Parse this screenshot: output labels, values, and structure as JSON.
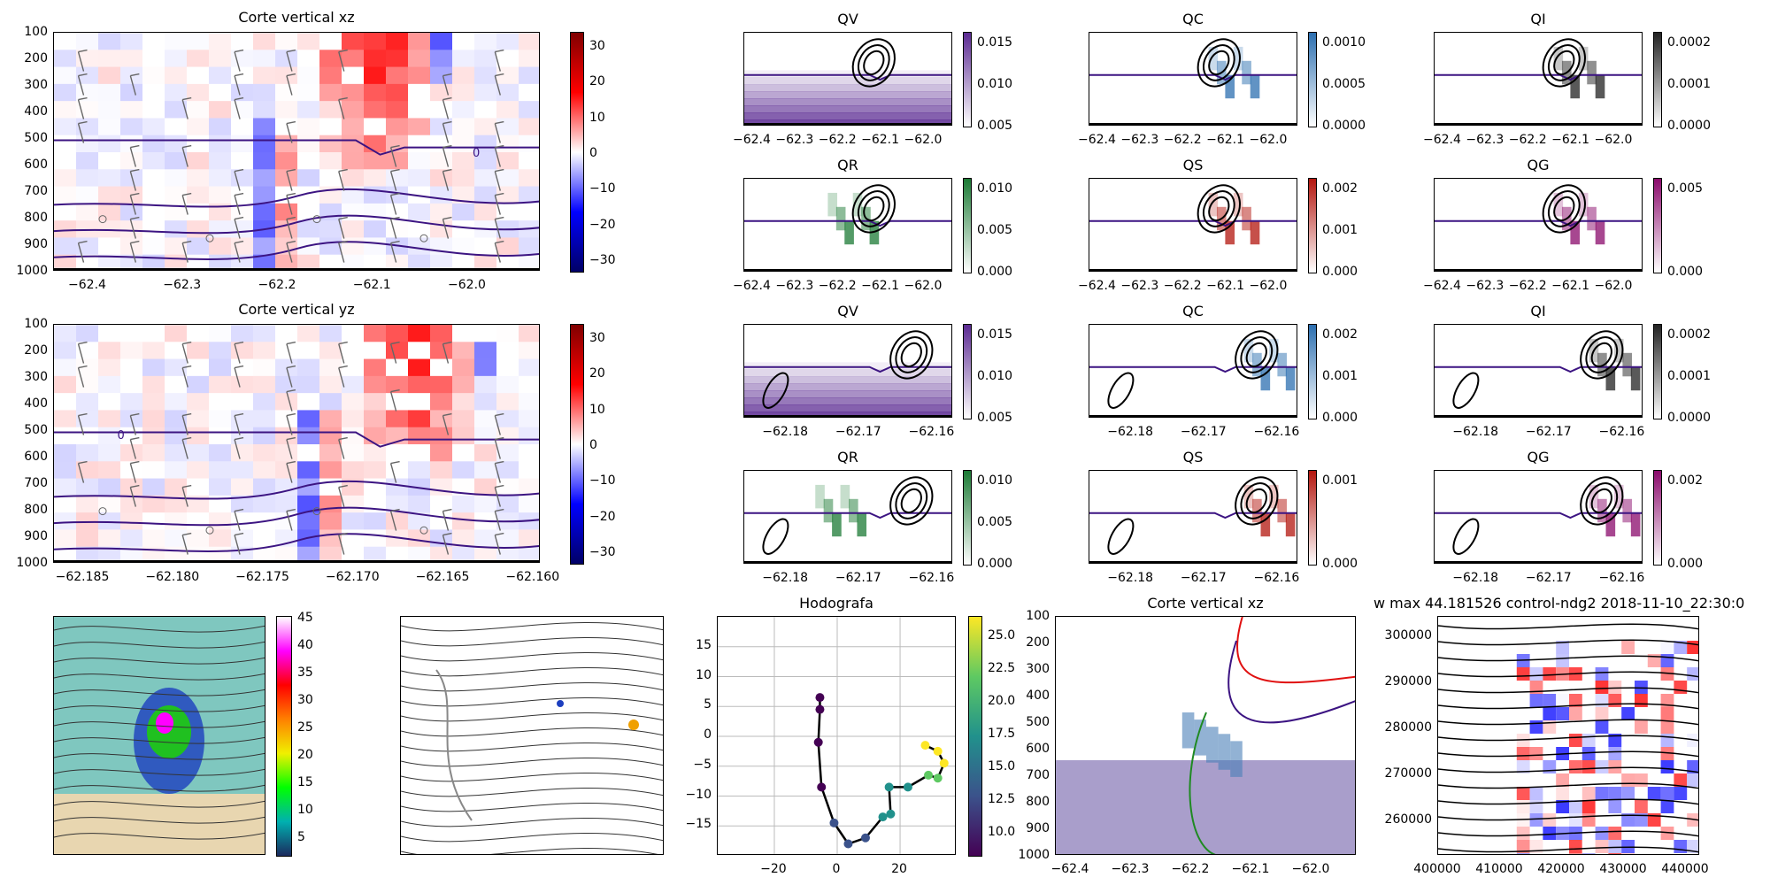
{
  "chart_data": [
    {
      "type": "heatmap",
      "title": "Corte vertical xz",
      "yticks": [
        "100",
        "200",
        "300",
        "400",
        "500",
        "600",
        "700",
        "800",
        "900",
        "1000"
      ],
      "xticks": [
        "−62.4",
        "−62.3",
        "−62.2",
        "−62.1",
        "−62.0"
      ],
      "colorbar_ticks": [
        "30",
        "20",
        "10",
        "0",
        "−10",
        "−20",
        "−30"
      ],
      "contour_label": "0",
      "cmap": "seismic"
    },
    {
      "type": "heatmap",
      "title": "Corte vertical yz",
      "yticks": [
        "100",
        "200",
        "300",
        "400",
        "500",
        "600",
        "700",
        "800",
        "900",
        "1000"
      ],
      "xticks": [
        "−62.185",
        "−62.180",
        "−62.175",
        "−62.170",
        "−62.165",
        "−62.160"
      ],
      "colorbar_ticks": [
        "30",
        "20",
        "10",
        "0",
        "−10",
        "−20",
        "−30"
      ],
      "contour_label": "0",
      "cmap": "seismic"
    },
    {
      "type": "heatmap",
      "panels": [
        {
          "title": "QV",
          "cbar": [
            "0.015",
            "0.010",
            "0.005"
          ],
          "color": "#5b2a92"
        },
        {
          "title": "QC",
          "cbar": [
            "0.0010",
            "0.0005",
            "0.0000"
          ],
          "color": "#2c6fb0"
        },
        {
          "title": "QI",
          "cbar": [
            "0.0002",
            "0.0001",
            "0.0000"
          ],
          "color": "#222222"
        },
        {
          "title": "QR",
          "cbar": [
            "0.010",
            "0.005",
            "0.000"
          ],
          "color": "#1b7a34"
        },
        {
          "title": "QS",
          "cbar": [
            "0.002",
            "0.001",
            "0.000"
          ],
          "color": "#b3160e"
        },
        {
          "title": "QG",
          "cbar": [
            "0.005",
            "0.000"
          ],
          "color": "#8a0a6b"
        }
      ],
      "xticks": [
        "−62.4",
        "−62.3",
        "−62.2",
        "−62.1",
        "−62.0"
      ]
    },
    {
      "type": "heatmap",
      "panels": [
        {
          "title": "QV",
          "cbar": [
            "0.015",
            "0.010",
            "0.005"
          ],
          "color": "#5b2a92"
        },
        {
          "title": "QC",
          "cbar": [
            "0.002",
            "0.001",
            "0.000"
          ],
          "color": "#2c6fb0"
        },
        {
          "title": "QI",
          "cbar": [
            "0.0002",
            "0.0001",
            "0.0000"
          ],
          "color": "#222222"
        },
        {
          "title": "QR",
          "cbar": [
            "0.010",
            "0.005",
            "0.000"
          ],
          "color": "#1b7a34"
        },
        {
          "title": "QS",
          "cbar": [
            "0.001",
            "0.000"
          ],
          "color": "#b3160e"
        },
        {
          "title": "QG",
          "cbar": [
            "0.002",
            "0.000"
          ],
          "color": "#8a0a6b"
        }
      ],
      "xticks": [
        "−62.18",
        "−62.17",
        "−62.16"
      ]
    },
    {
      "type": "heatmap",
      "colorbar_ticks": [
        "45",
        "40",
        "35",
        "30",
        "25",
        "20",
        "15",
        "10",
        "5"
      ]
    },
    {
      "type": "line",
      "title": "Hodografa",
      "xticks": [
        "−20",
        "0",
        "20"
      ],
      "yticks": [
        "15",
        "10",
        "5",
        "0",
        "−5",
        "−10",
        "−15"
      ],
      "xlim": [
        -38,
        38
      ],
      "ylim": [
        -20,
        20
      ],
      "grid": true,
      "colorbar_ticks": [
        "25.0",
        "22.5",
        "20.0",
        "17.5",
        "15.0",
        "12.5",
        "10.0"
      ],
      "points": [
        {
          "u": -5.5,
          "v": 6.5,
          "c": 8.5
        },
        {
          "u": -5.5,
          "v": 4.5,
          "c": 9.2
        },
        {
          "u": -6.0,
          "v": -1.0,
          "c": 10.5
        },
        {
          "u": -5.0,
          "v": -8.5,
          "c": 11.8
        },
        {
          "u": -1.0,
          "v": -14.5,
          "c": 13.0
        },
        {
          "u": 3.5,
          "v": -18.0,
          "c": 14.2
        },
        {
          "u": 9.0,
          "v": -17.0,
          "c": 15.0
        },
        {
          "u": 14.5,
          "v": -13.5,
          "c": 16.0
        },
        {
          "u": 17.0,
          "v": -13.0,
          "c": 17.0
        },
        {
          "u": 16.5,
          "v": -8.5,
          "c": 18.2
        },
        {
          "u": 22.5,
          "v": -8.5,
          "c": 19.5
        },
        {
          "u": 29.0,
          "v": -6.5,
          "c": 21.0
        },
        {
          "u": 32.0,
          "v": -7.0,
          "c": 22.5
        },
        {
          "u": 34.0,
          "v": -4.5,
          "c": 24.5
        },
        {
          "u": 32.0,
          "v": -2.5,
          "c": 25.8
        },
        {
          "u": 28.0,
          "v": -1.5,
          "c": 26.8
        }
      ]
    },
    {
      "type": "heatmap",
      "title": "Corte vertical xz",
      "yticks": [
        "100",
        "200",
        "300",
        "400",
        "500",
        "600",
        "700",
        "800",
        "900",
        "1000"
      ],
      "xticks": [
        "−62.4",
        "−62.3",
        "−62.2",
        "−62.1",
        "−62.0"
      ]
    },
    {
      "type": "heatmap",
      "title": "w max 44.181526 control-ndg2 2018-11-10_22:30:0",
      "yticks": [
        "300000",
        "290000",
        "280000",
        "270000",
        "260000"
      ],
      "xticks": [
        "400000",
        "410000",
        "420000",
        "430000",
        "440000"
      ]
    }
  ]
}
